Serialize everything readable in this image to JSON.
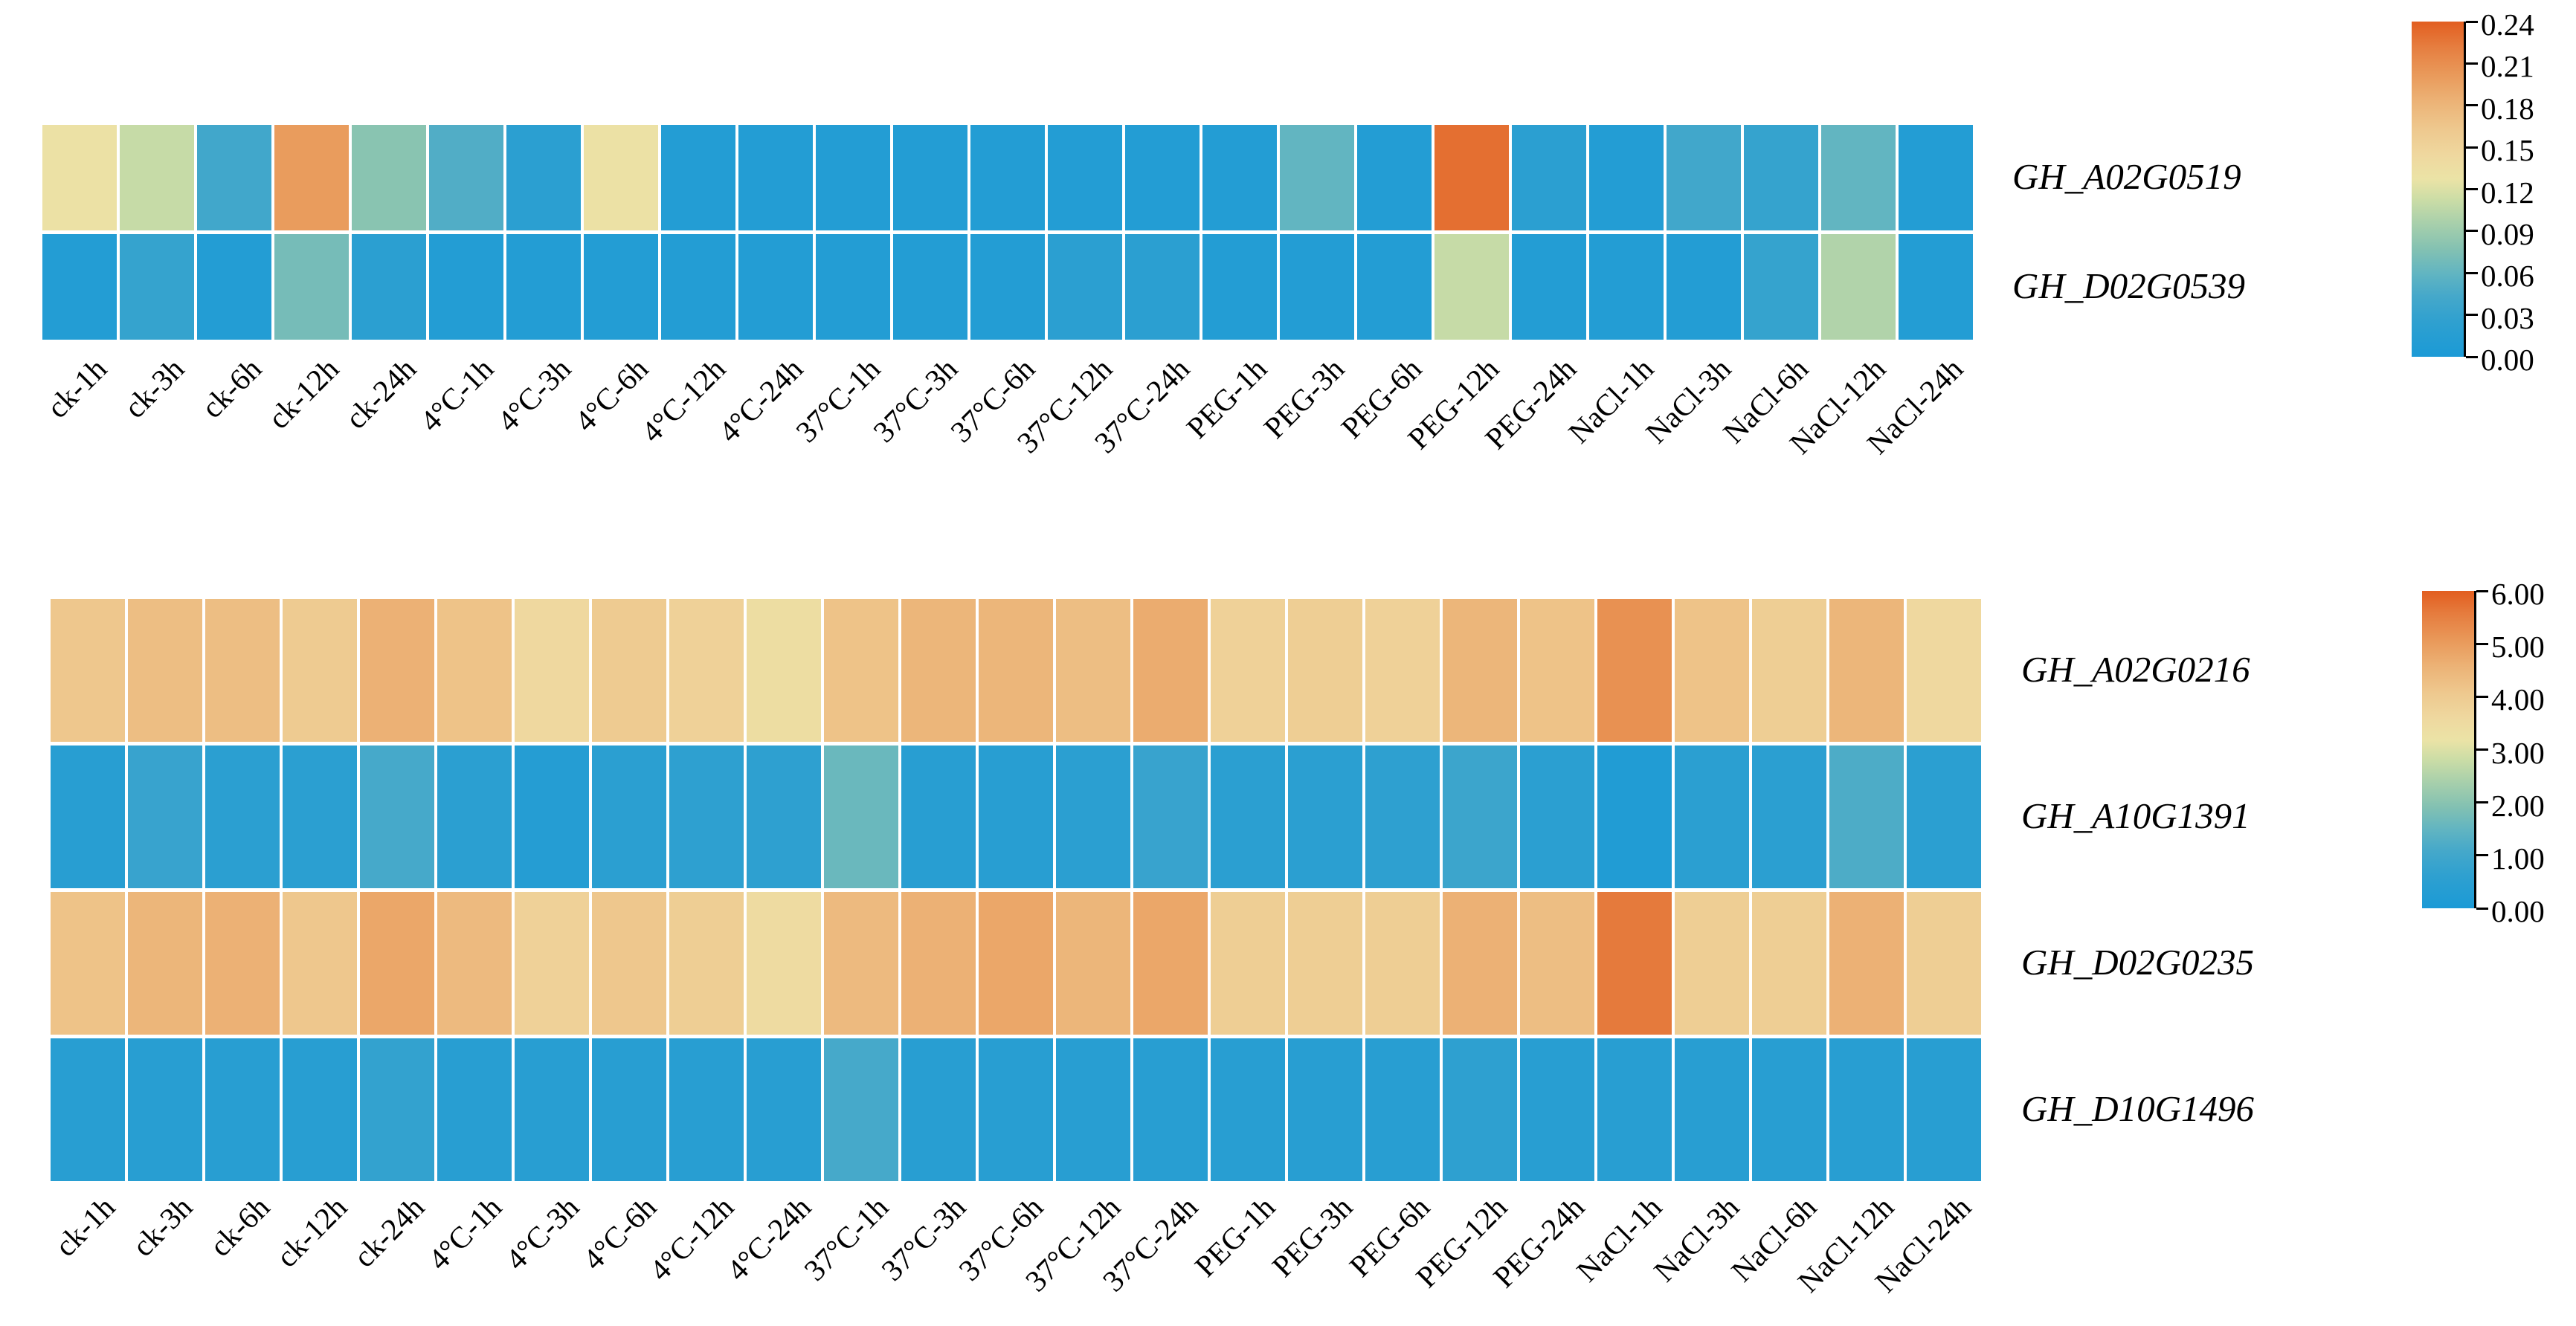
{
  "figure": {
    "background": "#ffffff",
    "description": "Two expression heatmaps of GH genes under stress treatments with colorbars"
  },
  "palette": {
    "stops": [
      {
        "t": 0.0,
        "color": "#1B9AD6"
      },
      {
        "t": 0.1,
        "color": "#2EA0D0"
      },
      {
        "t": 0.18,
        "color": "#45A8CA"
      },
      {
        "t": 0.25,
        "color": "#62B5C1"
      },
      {
        "t": 0.32,
        "color": "#83C1B2"
      },
      {
        "t": 0.4,
        "color": "#A9D0AB"
      },
      {
        "t": 0.47,
        "color": "#CCDDA6"
      },
      {
        "t": 0.53,
        "color": "#EBE3A6"
      },
      {
        "t": 0.6,
        "color": "#EFD89F"
      },
      {
        "t": 0.68,
        "color": "#EEC88E"
      },
      {
        "t": 0.76,
        "color": "#ECB377"
      },
      {
        "t": 0.84,
        "color": "#E99A5B"
      },
      {
        "t": 0.92,
        "color": "#E67F41"
      },
      {
        "t": 1.0,
        "color": "#E25E20"
      }
    ]
  },
  "chart_data": [
    {
      "type": "heatmap",
      "title": "",
      "categories": [
        "ck-1h",
        "ck-3h",
        "ck-6h",
        "ck-12h",
        "ck-24h",
        "4°C-1h",
        "4°C-3h",
        "4°C-6h",
        "4°C-12h",
        "4°C-24h",
        "37°C-1h",
        "37°C-3h",
        "37°C-6h",
        "37°C-12h",
        "37°C-24h",
        "PEG-1h",
        "PEG-3h",
        "PEG-6h",
        "PEG-12h",
        "PEG-24h",
        "NaCl-1h",
        "NaCl-3h",
        "NaCl-6h",
        "NaCl-12h",
        "NaCl-24h"
      ],
      "vmin": 0,
      "vmax": 0.24,
      "colorbar_ticks": [
        "0.24",
        "0.21",
        "0.18",
        "0.15",
        "0.12",
        "0.09",
        "0.06",
        "0.03",
        "0.00"
      ],
      "series": [
        {
          "name": "GH_A02G0519",
          "values": [
            0.13,
            0.11,
            0.04,
            0.2,
            0.08,
            0.05,
            0.02,
            0.13,
            0.01,
            0.01,
            0.01,
            0.01,
            0.01,
            0.01,
            0.01,
            0.01,
            0.06,
            0.01,
            0.23,
            0.02,
            0.01,
            0.04,
            0.03,
            0.06,
            0.01
          ]
        },
        {
          "name": "GH_D02G0539",
          "values": [
            0.01,
            0.03,
            0.01,
            0.07,
            0.02,
            0.01,
            0.01,
            0.01,
            0.01,
            0.01,
            0.01,
            0.01,
            0.01,
            0.02,
            0.02,
            0.01,
            0.01,
            0.01,
            0.11,
            0.01,
            0.01,
            0.01,
            0.03,
            0.1,
            0.01
          ]
        }
      ]
    },
    {
      "type": "heatmap",
      "title": "",
      "categories": [
        "ck-1h",
        "ck-3h",
        "ck-6h",
        "ck-12h",
        "ck-24h",
        "4°C-1h",
        "4°C-3h",
        "4°C-6h",
        "4°C-12h",
        "4°C-24h",
        "37°C-1h",
        "37°C-3h",
        "37°C-6h",
        "37°C-12h",
        "37°C-24h",
        "PEG-1h",
        "PEG-3h",
        "PEG-6h",
        "PEG-12h",
        "PEG-24h",
        "NaCl-1h",
        "NaCl-3h",
        "NaCl-6h",
        "NaCl-12h",
        "NaCl-24h"
      ],
      "vmin": 0,
      "vmax": 6,
      "colorbar_ticks": [
        "6.00",
        "5.00",
        "4.00",
        "3.00",
        "2.00",
        "1.00",
        "0.00"
      ],
      "series": [
        {
          "name": "GH_A02G0216",
          "values": [
            4.1,
            4.3,
            4.3,
            4.0,
            4.6,
            4.2,
            3.6,
            4.0,
            3.8,
            3.4,
            4.2,
            4.5,
            4.5,
            4.3,
            4.7,
            3.8,
            3.9,
            3.8,
            4.5,
            4.2,
            5.2,
            4.2,
            3.9,
            4.5,
            3.6
          ]
        },
        {
          "name": "GH_A10G1391",
          "values": [
            0.4,
            0.8,
            0.5,
            0.5,
            1.1,
            0.5,
            0.3,
            0.5,
            0.6,
            0.6,
            1.6,
            0.4,
            0.4,
            0.5,
            0.8,
            0.5,
            0.5,
            0.6,
            0.9,
            0.5,
            0.2,
            0.5,
            0.5,
            1.2,
            0.5
          ]
        },
        {
          "name": "GH_D02G0235",
          "values": [
            4.2,
            4.5,
            4.6,
            4.1,
            4.8,
            4.4,
            3.8,
            4.1,
            3.9,
            3.5,
            4.4,
            4.6,
            4.8,
            4.5,
            4.8,
            3.9,
            3.9,
            3.9,
            4.6,
            4.3,
            5.6,
            3.9,
            3.9,
            4.6,
            3.9
          ]
        },
        {
          "name": "GH_D10G1496",
          "values": [
            0.4,
            0.4,
            0.4,
            0.4,
            0.7,
            0.4,
            0.4,
            0.4,
            0.4,
            0.4,
            1.1,
            0.4,
            0.4,
            0.4,
            0.4,
            0.4,
            0.4,
            0.4,
            0.6,
            0.4,
            0.4,
            0.4,
            0.4,
            0.4,
            0.4
          ]
        }
      ]
    }
  ]
}
